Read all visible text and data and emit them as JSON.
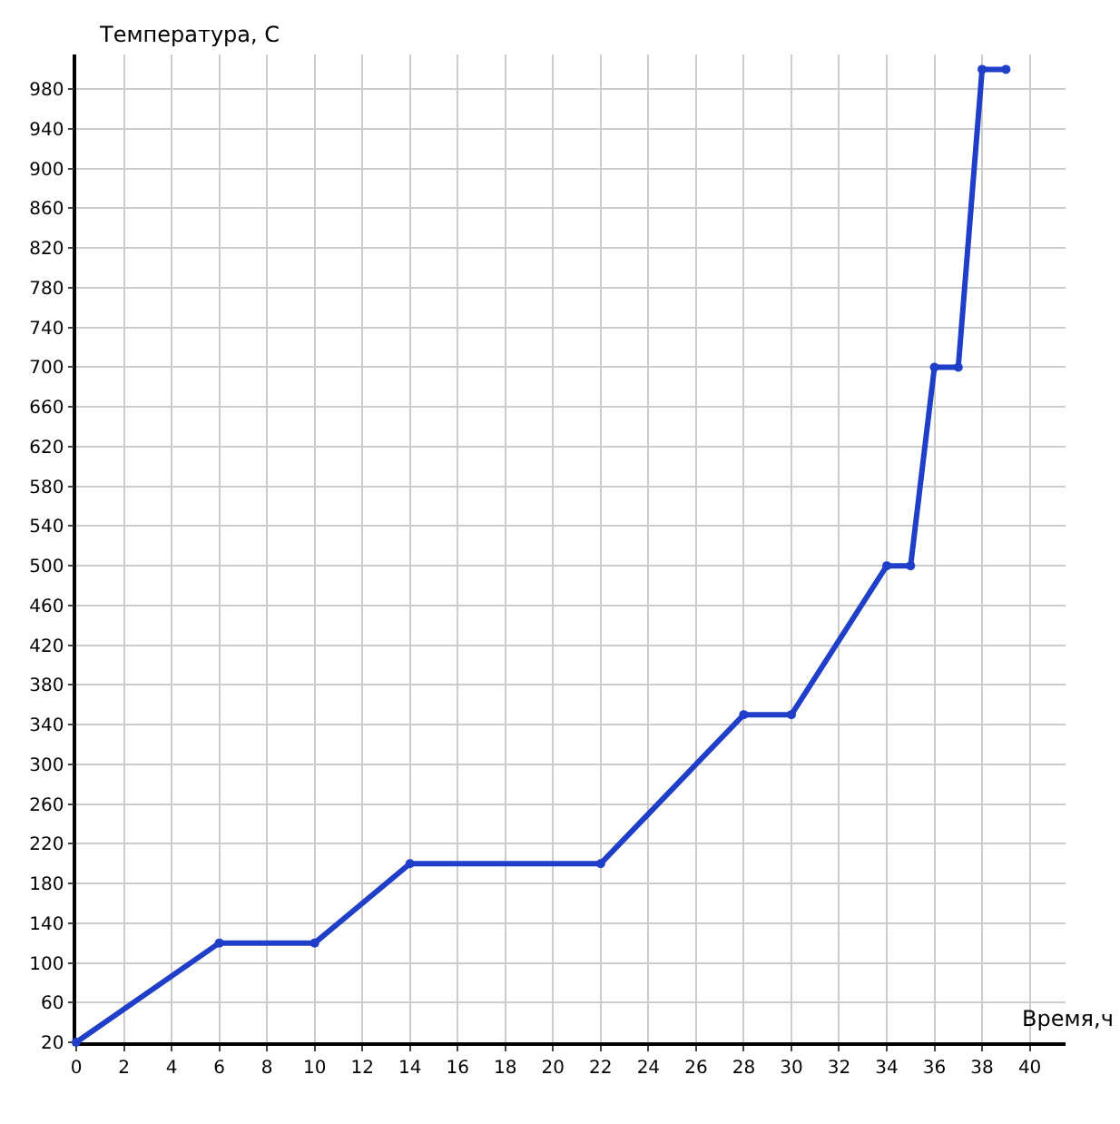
{
  "chart_data": {
    "type": "line",
    "xlabel": "Время,ч",
    "ylabel": "Температура, C",
    "x": [
      0,
      6,
      10,
      14,
      22,
      28,
      30,
      34,
      35,
      36,
      37,
      38,
      39
    ],
    "series": [
      {
        "color": "#1f3fc8",
        "values": [
          20,
          120,
          120,
          200,
          200,
          350,
          350,
          500,
          500,
          700,
          700,
          1000,
          1000
        ]
      }
    ],
    "xlim": [
      0,
      41.5
    ],
    "ylim": [
      20,
      1015
    ],
    "xticks": [
      0,
      2,
      4,
      6,
      8,
      10,
      12,
      14,
      16,
      18,
      20,
      22,
      24,
      26,
      28,
      30,
      32,
      34,
      36,
      38,
      40
    ],
    "yticks": [
      20,
      60,
      100,
      140,
      180,
      220,
      260,
      300,
      340,
      380,
      420,
      460,
      500,
      540,
      580,
      620,
      660,
      700,
      740,
      780,
      820,
      860,
      900,
      940,
      980
    ],
    "grid": true,
    "marker": "circle",
    "line_style": "solid",
    "legend": false
  }
}
